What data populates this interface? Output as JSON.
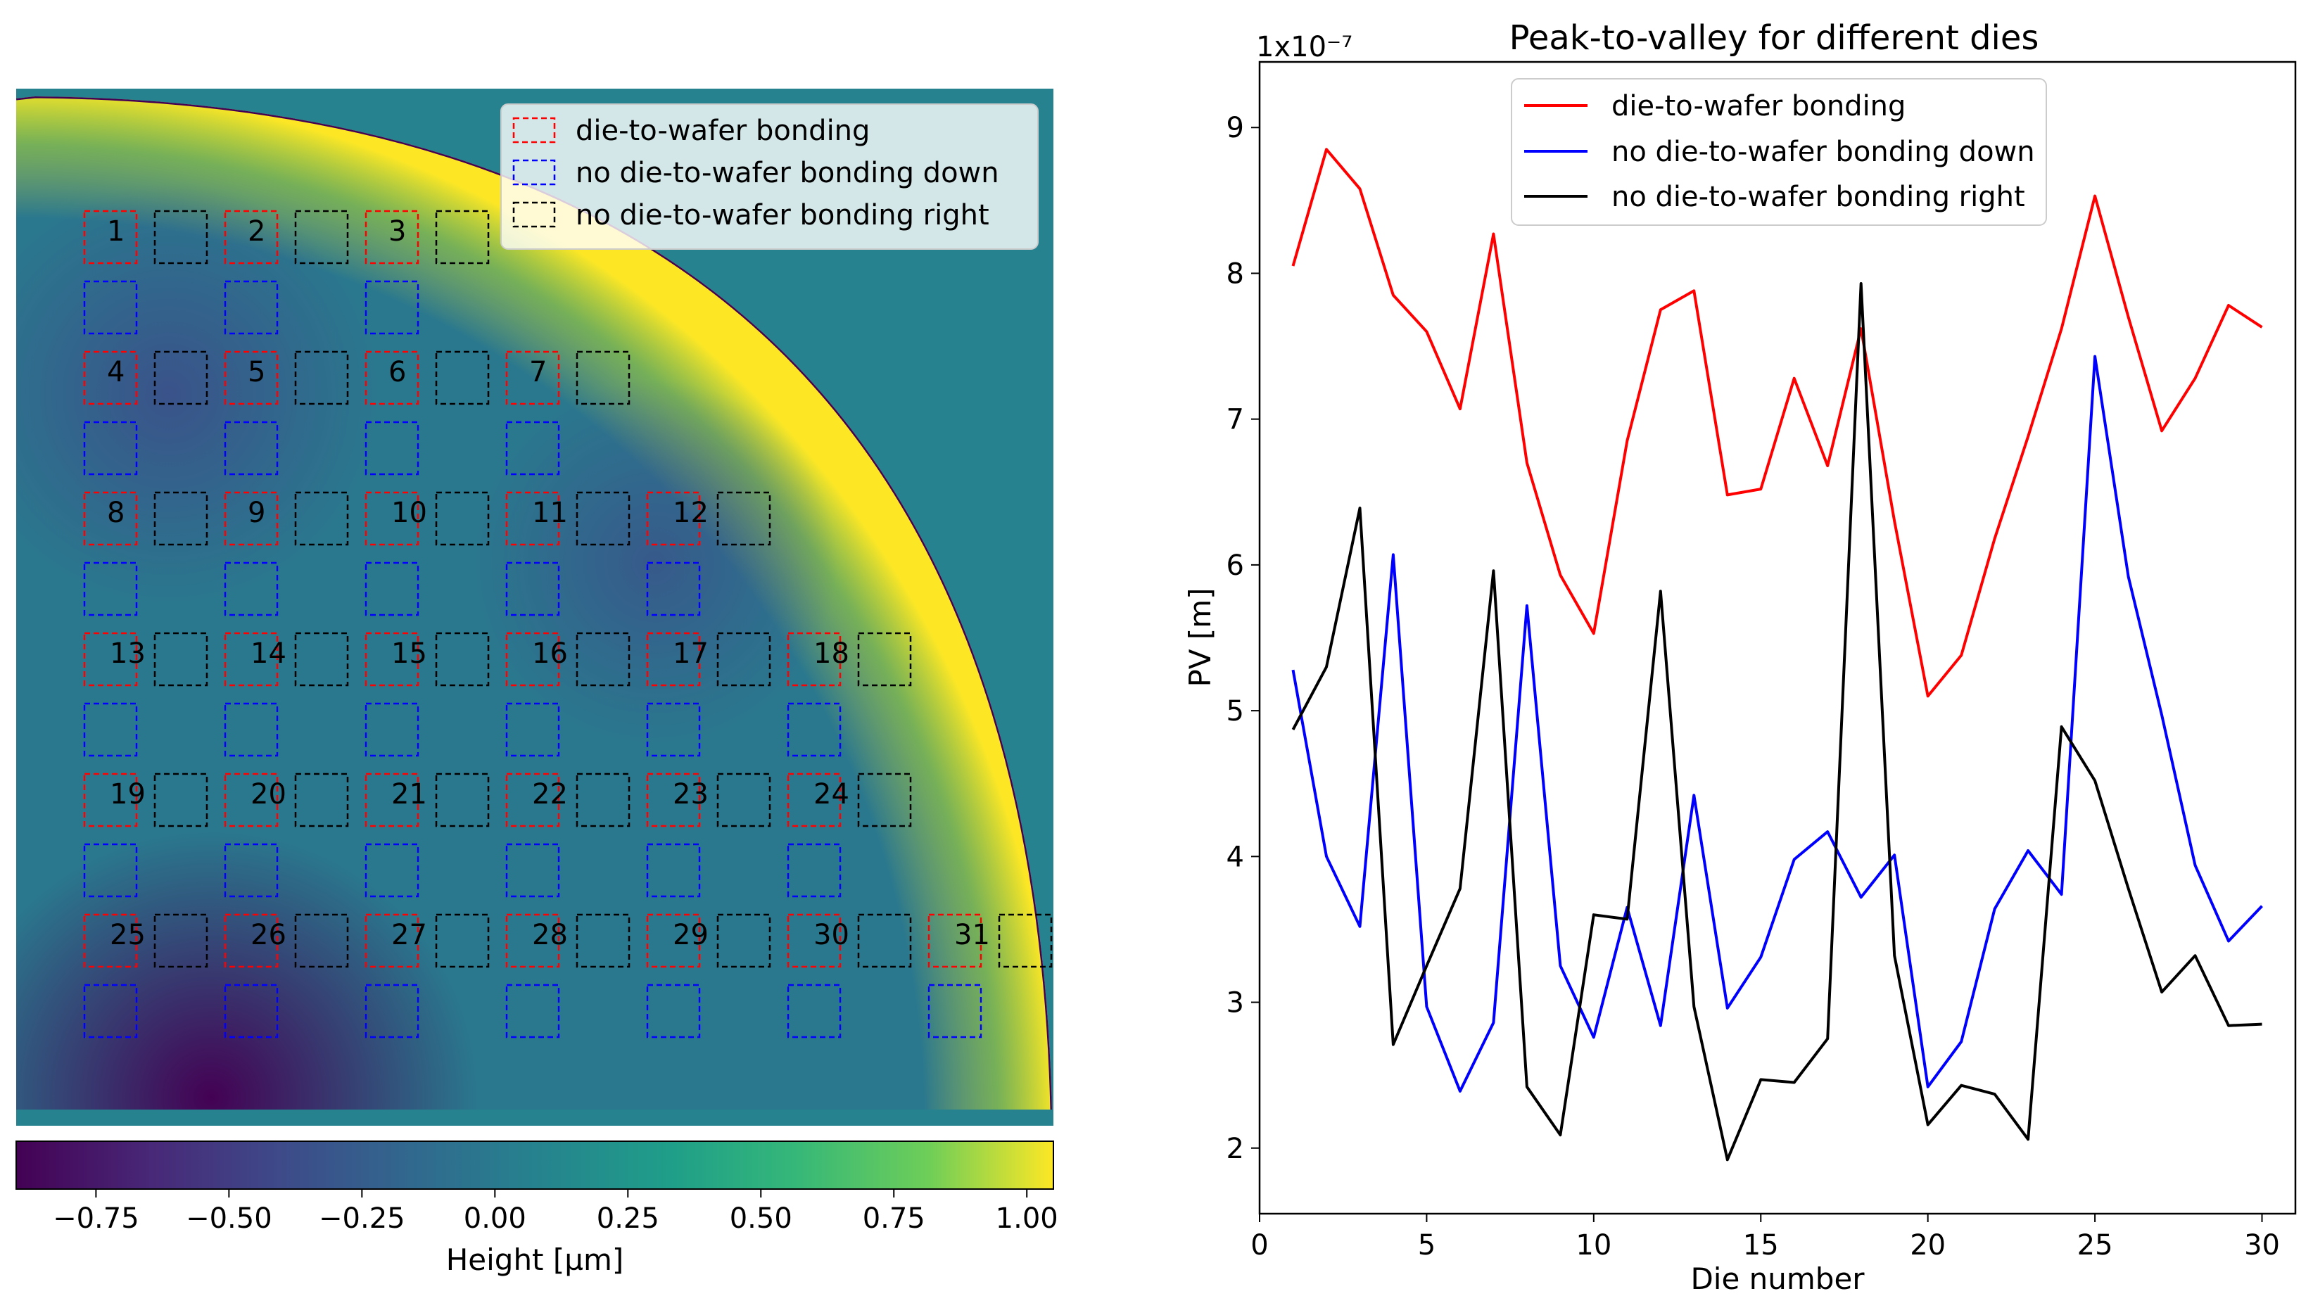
{
  "chart_data": [
    {
      "type": "heatmap",
      "title": "",
      "colorbar": {
        "label": "Height [µm]",
        "range": [
          -0.9,
          1.05
        ],
        "ticks": [
          "−0.75",
          "−0.50",
          "−0.25",
          "0.00",
          "0.25",
          "0.50",
          "0.75",
          "1.00"
        ],
        "tick_values": [
          -0.75,
          -0.5,
          -0.25,
          0.0,
          0.25,
          0.5,
          0.75,
          1.0
        ]
      },
      "legend": {
        "position": "top-right",
        "entries": [
          {
            "label": "die-to-wafer bonding",
            "color": "#ff0000"
          },
          {
            "label": "no die-to-wafer bonding down",
            "color": "#0000ff"
          },
          {
            "label": "no die-to-wafer bonding right",
            "color": "#000000"
          }
        ]
      },
      "die_rows": [
        [
          1,
          2,
          3
        ],
        [
          4,
          5,
          6,
          7
        ],
        [
          8,
          9,
          10,
          11,
          12
        ],
        [
          13,
          14,
          15,
          16,
          17,
          18
        ],
        [
          19,
          20,
          21,
          22,
          23,
          24
        ],
        [
          25,
          26,
          27,
          28,
          29,
          30,
          31
        ]
      ]
    },
    {
      "type": "line",
      "title": "Peak-to-valley for different dies",
      "xlabel": "Die number",
      "ylabel": "PV [m]",
      "y_offset_label": "1x10⁻⁷",
      "xlim": [
        0,
        31
      ],
      "ylim": [
        1.55,
        9.45
      ],
      "xticks": [
        0,
        5,
        10,
        15,
        20,
        25,
        30
      ],
      "yticks": [
        2,
        3,
        4,
        5,
        6,
        7,
        8,
        9
      ],
      "legend_position": "upper center",
      "x": [
        1,
        2,
        3,
        4,
        5,
        6,
        7,
        8,
        9,
        10,
        11,
        12,
        13,
        14,
        15,
        16,
        17,
        18,
        19,
        20,
        21,
        22,
        23,
        24,
        25,
        26,
        27,
        28,
        29,
        30
      ],
      "series": [
        {
          "name": "die-to-wafer bonding",
          "color": "#ff0000",
          "values": [
            8.05,
            8.85,
            8.58,
            7.85,
            7.6,
            7.07,
            8.27,
            6.7,
            5.93,
            5.53,
            6.85,
            7.75,
            7.88,
            6.48,
            6.52,
            7.28,
            6.68,
            7.62,
            6.3,
            5.1,
            5.38,
            6.18,
            6.88,
            7.62,
            8.53,
            7.7,
            6.92,
            7.28,
            7.78,
            7.63
          ]
        },
        {
          "name": "no die-to-wafer bonding down",
          "color": "#0000ff",
          "values": [
            5.28,
            4.0,
            3.52,
            6.07,
            2.97,
            2.39,
            2.86,
            5.72,
            3.25,
            2.76,
            3.65,
            2.84,
            4.42,
            2.96,
            3.31,
            3.98,
            4.17,
            3.72,
            4.01,
            2.42,
            2.73,
            3.64,
            4.04,
            3.74,
            7.43,
            5.92,
            4.97,
            3.94,
            3.42,
            3.66
          ]
        },
        {
          "name": "no die-to-wafer bonding right",
          "color": "#000000",
          "values": [
            4.87,
            5.3,
            6.39,
            2.71,
            3.25,
            3.78,
            5.96,
            2.42,
            2.09,
            3.6,
            3.57,
            5.82,
            2.97,
            1.92,
            2.47,
            2.45,
            2.75,
            7.93,
            3.32,
            2.16,
            2.43,
            2.37,
            2.06,
            4.89,
            4.52,
            3.78,
            3.07,
            3.32,
            2.84,
            2.85
          ]
        }
      ]
    }
  ]
}
